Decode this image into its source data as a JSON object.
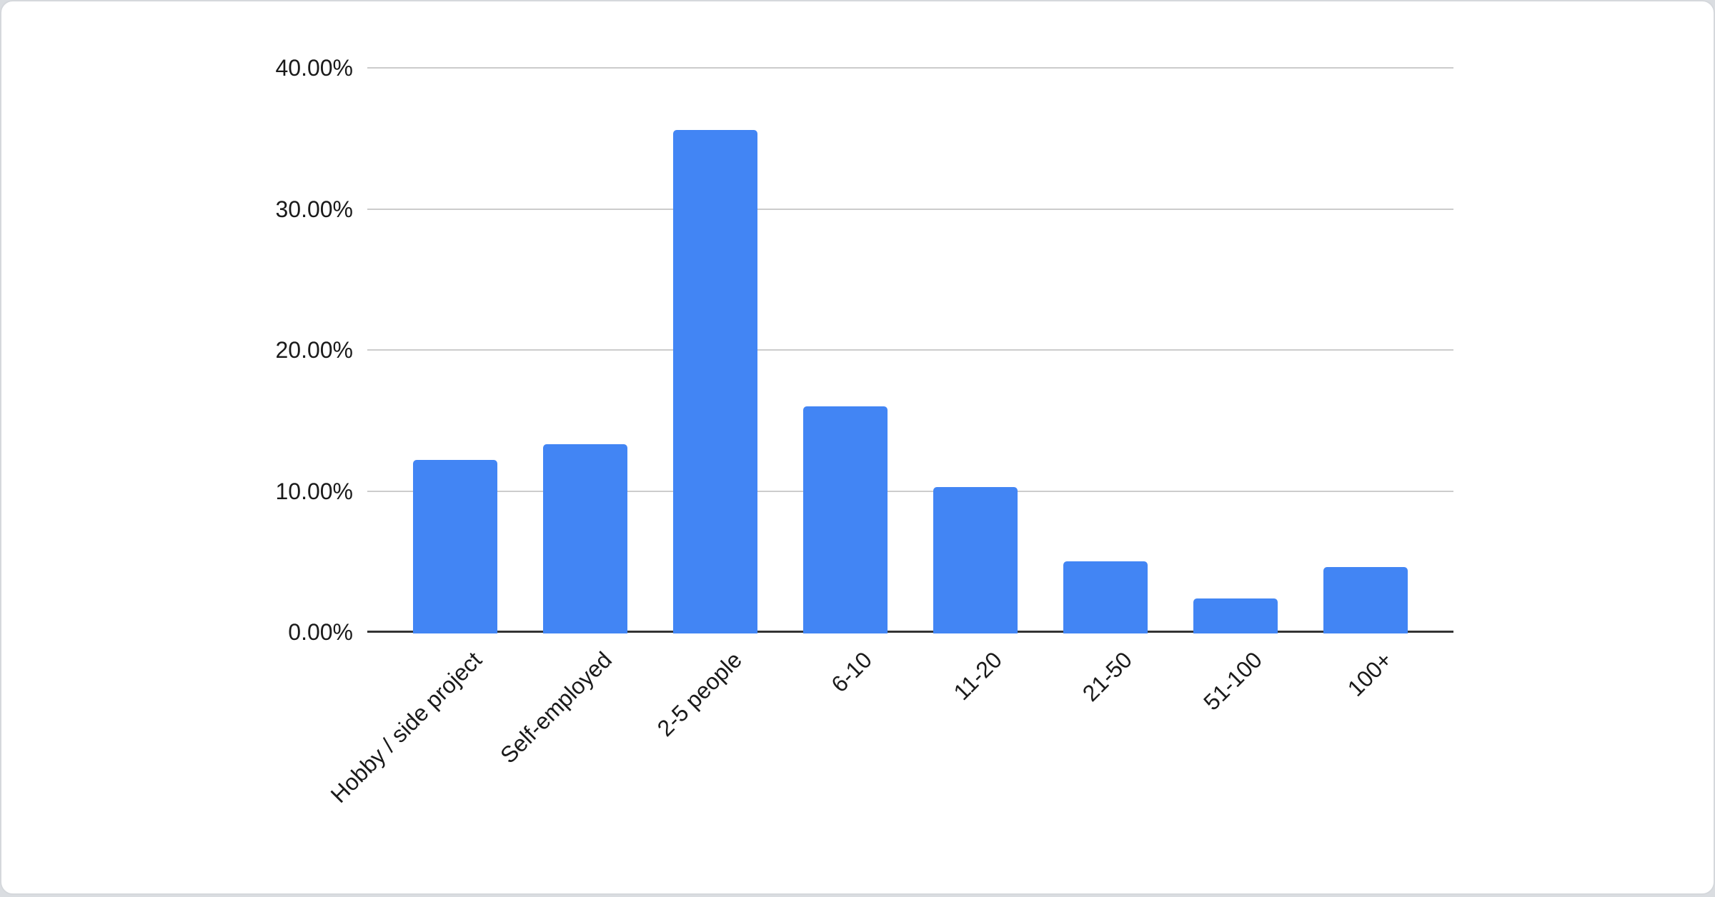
{
  "chart_data": {
    "type": "bar",
    "categories": [
      "Hobby / side project",
      "Self-employed",
      "2-5 people",
      "6-10",
      "11-20",
      "21-50",
      "51-100",
      "100+"
    ],
    "values": [
      12.2,
      13.3,
      35.6,
      16.0,
      10.3,
      5.0,
      2.4,
      4.6
    ],
    "value_unit": "%",
    "ytick_labels": [
      "0.00%",
      "10.00%",
      "20.00%",
      "30.00%",
      "40.00%"
    ],
    "ytick_values": [
      0,
      10,
      20,
      30,
      40
    ],
    "ylim": [
      0,
      40
    ],
    "grid": true,
    "legend_position": "none",
    "colors": {
      "bar": "#4285f4",
      "gridline": "#cccccc",
      "baseline": "#333333",
      "text": "#1a1a1a",
      "card_background": "#ffffff",
      "card_border": "#d5d8dc"
    }
  }
}
